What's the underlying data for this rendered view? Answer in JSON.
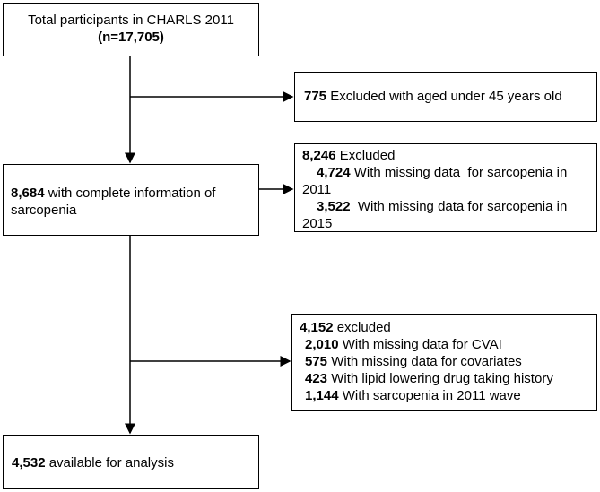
{
  "nodes": [
    {
      "label": "Total participants in CHARLS 2011",
      "count": "(n=17,705)"
    },
    {
      "count": "8,684",
      "label": "with complete information of sarcopenia"
    },
    {
      "count": "4,532",
      "label": "available for analysis"
    }
  ],
  "exclusions": [
    {
      "count": "775",
      "label": "Excluded with aged under 45 years old",
      "details": []
    },
    {
      "count": "8,246",
      "label": "Excluded",
      "details": [
        {
          "count": "4,724",
          "label": "With missing data  for sarcopenia in 2011"
        },
        {
          "count": "3,522",
          "label": " With missing data for sarcopenia in 2015"
        }
      ]
    },
    {
      "count": "4,152",
      "label": " excluded",
      "details": [
        {
          "count": "2,010",
          "label": "With missing data for CVAI"
        },
        {
          "count": "575",
          "label": "With missing data for covariates"
        },
        {
          "count": "423",
          "label": "With lipid lowering drug taking history"
        },
        {
          "count": "1,144",
          "label": "With sarcopenia in 2011 wave"
        }
      ]
    }
  ]
}
